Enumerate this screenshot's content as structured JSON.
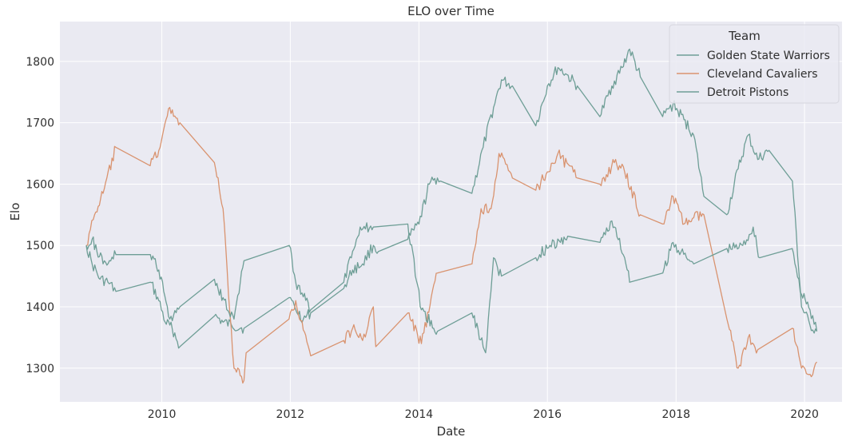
{
  "chart_data": {
    "type": "line",
    "title": "ELO over Time",
    "xlabel": "Date",
    "ylabel": "Elo",
    "xlim": [
      "2008-06-01",
      "2020-08-01"
    ],
    "ylim": [
      1245,
      1865
    ],
    "x_ticks": [
      "2010",
      "2012",
      "2014",
      "2016",
      "2018",
      "2020"
    ],
    "y_ticks": [
      1300,
      1400,
      1500,
      1600,
      1700,
      1800
    ],
    "grid": true,
    "legend": {
      "title": "Team",
      "placement": "top-right"
    },
    "colors": {
      "background": "#eaeaf2",
      "grid": "#ffffff",
      "gsw": "#6e9e96",
      "cle": "#d9936f",
      "det": "#6e9e96"
    },
    "series": [
      {
        "name": "Golden State Warriors",
        "color": "#6e9e96",
        "points": [
          [
            "2008-10-29",
            1500
          ],
          [
            "2008-12-01",
            1470
          ],
          [
            "2009-01-15",
            1445
          ],
          [
            "2009-03-01",
            1440
          ],
          [
            "2009-04-15",
            1425
          ],
          [
            "2009-10-28",
            1440
          ],
          [
            "2009-12-15",
            1410
          ],
          [
            "2010-01-20",
            1375
          ],
          [
            "2010-03-01",
            1365
          ],
          [
            "2010-04-14",
            1335
          ],
          [
            "2010-10-27",
            1385
          ],
          [
            "2010-12-15",
            1375
          ],
          [
            "2011-02-01",
            1370
          ],
          [
            "2011-04-13",
            1365
          ],
          [
            "2011-12-25",
            1415
          ],
          [
            "2012-02-01",
            1395
          ],
          [
            "2012-03-15",
            1380
          ],
          [
            "2012-04-26",
            1390
          ],
          [
            "2012-10-31",
            1430
          ],
          [
            "2012-12-20",
            1460
          ],
          [
            "2013-02-15",
            1470
          ],
          [
            "2013-04-17",
            1500
          ],
          [
            "2013-05-15",
            1490
          ],
          [
            "2013-10-30",
            1510
          ],
          [
            "2014-01-01",
            1535
          ],
          [
            "2014-03-01",
            1600
          ],
          [
            "2014-04-16",
            1610
          ],
          [
            "2014-05-03",
            1605
          ],
          [
            "2014-10-29",
            1585
          ],
          [
            "2015-01-01",
            1660
          ],
          [
            "2015-03-01",
            1725
          ],
          [
            "2015-04-15",
            1770
          ],
          [
            "2015-06-16",
            1760
          ],
          [
            "2015-10-27",
            1695
          ],
          [
            "2016-01-01",
            1760
          ],
          [
            "2016-03-01",
            1790
          ],
          [
            "2016-04-13",
            1780
          ],
          [
            "2016-06-19",
            1760
          ],
          [
            "2016-10-25",
            1710
          ],
          [
            "2017-01-01",
            1760
          ],
          [
            "2017-03-01",
            1790
          ],
          [
            "2017-04-12",
            1820
          ],
          [
            "2017-06-12",
            1775
          ],
          [
            "2017-10-17",
            1710
          ],
          [
            "2017-12-15",
            1730
          ],
          [
            "2018-02-15",
            1705
          ],
          [
            "2018-04-11",
            1680
          ],
          [
            "2018-06-08",
            1580
          ],
          [
            "2018-10-16",
            1550
          ],
          [
            "2018-12-20",
            1625
          ],
          [
            "2019-02-15",
            1680
          ],
          [
            "2019-04-10",
            1640
          ],
          [
            "2019-06-13",
            1655
          ],
          [
            "2019-10-24",
            1605
          ],
          [
            "2019-12-15",
            1400
          ],
          [
            "2020-02-01",
            1370
          ],
          [
            "2020-03-11",
            1360
          ]
        ]
      },
      {
        "name": "Cleveland Cavaliers",
        "color": "#d9936f",
        "points": [
          [
            "2008-10-29",
            1500
          ],
          [
            "2008-12-15",
            1550
          ],
          [
            "2009-02-01",
            1585
          ],
          [
            "2009-04-15",
            1660
          ],
          [
            "2009-10-27",
            1630
          ],
          [
            "2009-12-15",
            1655
          ],
          [
            "2010-02-15",
            1725
          ],
          [
            "2010-04-14",
            1700
          ],
          [
            "2010-10-27",
            1635
          ],
          [
            "2010-12-15",
            1560
          ],
          [
            "2011-01-15",
            1420
          ],
          [
            "2011-02-15",
            1300
          ],
          [
            "2011-04-13",
            1280
          ],
          [
            "2011-04-25",
            1325
          ],
          [
            "2011-12-25",
            1380
          ],
          [
            "2012-02-01",
            1410
          ],
          [
            "2012-04-26",
            1320
          ],
          [
            "2012-10-31",
            1345
          ],
          [
            "2012-12-20",
            1365
          ],
          [
            "2013-02-15",
            1345
          ],
          [
            "2013-04-17",
            1400
          ],
          [
            "2013-05-01",
            1335
          ],
          [
            "2013-10-30",
            1390
          ],
          [
            "2014-01-15",
            1340
          ],
          [
            "2014-04-16",
            1455
          ],
          [
            "2014-10-30",
            1470
          ],
          [
            "2014-12-20",
            1560
          ],
          [
            "2015-02-15",
            1560
          ],
          [
            "2015-04-01",
            1650
          ],
          [
            "2015-06-16",
            1610
          ],
          [
            "2015-10-27",
            1590
          ],
          [
            "2016-01-01",
            1620
          ],
          [
            "2016-03-01",
            1650
          ],
          [
            "2016-06-19",
            1610
          ],
          [
            "2016-10-25",
            1600
          ],
          [
            "2017-01-15",
            1635
          ],
          [
            "2017-03-15",
            1620
          ],
          [
            "2017-06-12",
            1550
          ],
          [
            "2017-10-17",
            1535
          ],
          [
            "2017-12-15",
            1580
          ],
          [
            "2018-02-15",
            1535
          ],
          [
            "2018-04-11",
            1545
          ],
          [
            "2018-06-08",
            1550
          ],
          [
            "2018-10-17",
            1380
          ],
          [
            "2018-12-20",
            1300
          ],
          [
            "2019-02-15",
            1350
          ],
          [
            "2019-04-10",
            1330
          ],
          [
            "2019-10-23",
            1365
          ],
          [
            "2019-12-15",
            1300
          ],
          [
            "2020-02-01",
            1290
          ],
          [
            "2020-03-11",
            1310
          ]
        ]
      },
      {
        "name": "Detroit Pistons",
        "color": "#6e9e96",
        "points": [
          [
            "2008-10-29",
            1500
          ],
          [
            "2008-12-01",
            1510
          ],
          [
            "2009-02-01",
            1470
          ],
          [
            "2009-04-15",
            1485
          ],
          [
            "2009-10-28",
            1485
          ],
          [
            "2009-12-15",
            1460
          ],
          [
            "2010-02-15",
            1380
          ],
          [
            "2010-04-14",
            1400
          ],
          [
            "2010-10-27",
            1445
          ],
          [
            "2010-12-15",
            1415
          ],
          [
            "2011-02-15",
            1380
          ],
          [
            "2011-04-13",
            1475
          ],
          [
            "2011-12-26",
            1500
          ],
          [
            "2012-02-01",
            1440
          ],
          [
            "2012-04-26",
            1395
          ],
          [
            "2012-10-31",
            1440
          ],
          [
            "2013-02-01",
            1530
          ],
          [
            "2013-04-17",
            1530
          ],
          [
            "2013-10-30",
            1535
          ],
          [
            "2014-01-15",
            1395
          ],
          [
            "2014-04-16",
            1360
          ],
          [
            "2014-10-29",
            1390
          ],
          [
            "2015-01-15",
            1325
          ],
          [
            "2015-03-01",
            1480
          ],
          [
            "2015-04-15",
            1450
          ],
          [
            "2015-10-27",
            1480
          ],
          [
            "2016-01-15",
            1500
          ],
          [
            "2016-03-15",
            1505
          ],
          [
            "2016-04-25",
            1515
          ],
          [
            "2016-10-26",
            1505
          ],
          [
            "2017-01-01",
            1540
          ],
          [
            "2017-03-15",
            1480
          ],
          [
            "2017-04-12",
            1440
          ],
          [
            "2017-10-18",
            1455
          ],
          [
            "2017-12-15",
            1505
          ],
          [
            "2018-03-01",
            1480
          ],
          [
            "2018-04-11",
            1470
          ],
          [
            "2018-10-17",
            1495
          ],
          [
            "2019-01-15",
            1500
          ],
          [
            "2019-03-15",
            1530
          ],
          [
            "2019-04-21",
            1480
          ],
          [
            "2019-10-23",
            1495
          ],
          [
            "2019-12-15",
            1420
          ],
          [
            "2020-02-01",
            1395
          ],
          [
            "2020-03-11",
            1360
          ]
        ]
      }
    ]
  }
}
